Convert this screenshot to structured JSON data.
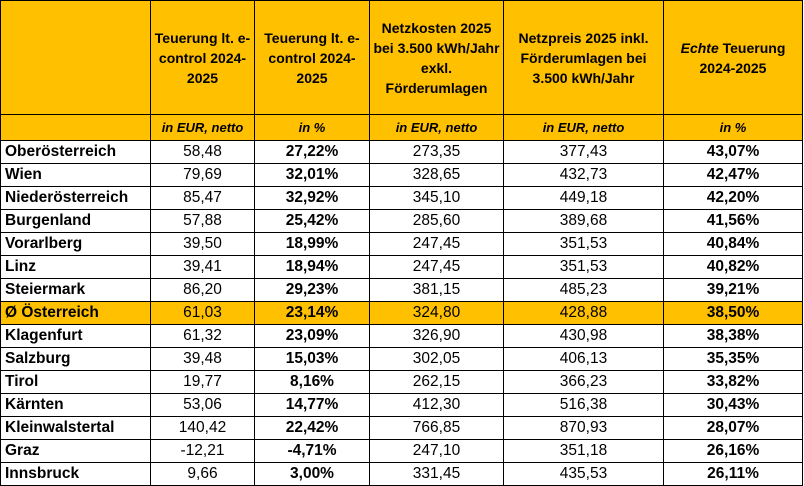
{
  "columns": {
    "eur_change": "Teuerung lt. e-control 2024-2025",
    "pct_change": "Teuerung lt. e-control 2024-2025",
    "net_costs": "Netzkosten 2025 bei 3.500 kWh/Jahr exkl. Förderumlagen",
    "net_price": "Netzpreis 2025 inkl. Förderumlagen bei 3.500 kWh/Jahr",
    "real_prefix": "Echte",
    "real_rest": " Teuerung 2024-2025"
  },
  "units": {
    "eur_change": "in EUR, netto",
    "pct_change": "in %",
    "net_costs": "in EUR, netto",
    "net_price": "in EUR, netto",
    "real": "in %"
  },
  "rows": [
    {
      "region": "Oberösterreich",
      "eur": "58,48",
      "pct": "27,22%",
      "costs": "273,35",
      "price": "377,43",
      "real": "43,07%"
    },
    {
      "region": "Wien",
      "eur": "79,69",
      "pct": "32,01%",
      "costs": "328,65",
      "price": "432,73",
      "real": "42,47%"
    },
    {
      "region": "Niederösterreich",
      "eur": "85,47",
      "pct": "32,92%",
      "costs": "345,10",
      "price": "449,18",
      "real": "42,20%"
    },
    {
      "region": "Burgenland",
      "eur": "57,88",
      "pct": "25,42%",
      "costs": "285,60",
      "price": "389,68",
      "real": "41,56%"
    },
    {
      "region": "Vorarlberg",
      "eur": "39,50",
      "pct": "18,99%",
      "costs": "247,45",
      "price": "351,53",
      "real": "40,84%"
    },
    {
      "region": "Linz",
      "eur": "39,41",
      "pct": "18,94%",
      "costs": "247,45",
      "price": "351,53",
      "real": "40,82%"
    },
    {
      "region": "Steiermark",
      "eur": "86,20",
      "pct": "29,23%",
      "costs": "381,15",
      "price": "485,23",
      "real": "39,21%"
    },
    {
      "region": "Ø Österreich",
      "eur": "61,03",
      "pct": "23,14%",
      "costs": "324,80",
      "price": "428,88",
      "real": "38,50%"
    },
    {
      "region": "Klagenfurt",
      "eur": "61,32",
      "pct": "23,09%",
      "costs": "326,90",
      "price": "430,98",
      "real": "38,38%"
    },
    {
      "region": "Salzburg",
      "eur": "39,48",
      "pct": "15,03%",
      "costs": "302,05",
      "price": "406,13",
      "real": "35,35%"
    },
    {
      "region": "Tirol",
      "eur": "19,77",
      "pct": "8,16%",
      "costs": "262,15",
      "price": "366,23",
      "real": "33,82%"
    },
    {
      "region": "Kärnten",
      "eur": "53,06",
      "pct": "14,77%",
      "costs": "412,30",
      "price": "516,38",
      "real": "30,43%"
    },
    {
      "region": "Kleinwalstertal",
      "eur": "140,42",
      "pct": "22,42%",
      "costs": "766,85",
      "price": "870,93",
      "real": "28,07%"
    },
    {
      "region": "Graz",
      "eur": "-12,21",
      "pct": "-4,71%",
      "costs": "247,10",
      "price": "351,18",
      "real": "26,16%"
    },
    {
      "region": "Innsbruck",
      "eur": "9,66",
      "pct": "3,00%",
      "costs": "331,45",
      "price": "435,53",
      "real": "26,11%"
    }
  ],
  "colors": {
    "header_bg": "#ffc000",
    "highlight_row_bg": "#ffc000"
  },
  "highlight_region": "Ø Österreich"
}
